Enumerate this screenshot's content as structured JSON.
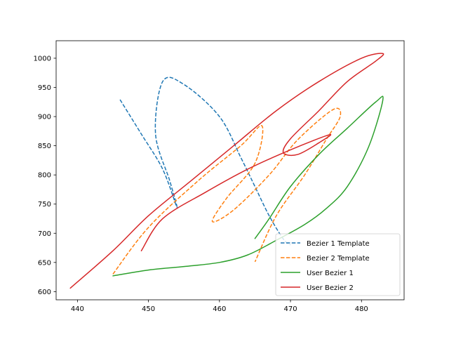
{
  "chart_data": {
    "type": "line",
    "title": "",
    "xlabel": "",
    "ylabel": "",
    "xlim": [
      437,
      486
    ],
    "ylim": [
      586,
      1030
    ],
    "x_ticks": [
      440,
      450,
      460,
      470,
      480
    ],
    "y_ticks": [
      600,
      650,
      700,
      750,
      800,
      850,
      900,
      950,
      1000
    ],
    "grid": false,
    "legend_position": "lower right",
    "series": [
      {
        "name": "Bezier 1 Template",
        "color": "#1f77b4",
        "dash": "dashed",
        "points": [
          [
            446,
            929
          ],
          [
            449,
            870
          ],
          [
            452,
            810
          ],
          [
            454,
            745
          ],
          [
            453,
            790
          ],
          [
            451,
            870
          ],
          [
            452,
            960
          ],
          [
            455,
            955
          ],
          [
            460,
            900
          ],
          [
            463,
            830
          ],
          [
            465,
            780
          ],
          [
            467,
            730
          ],
          [
            469,
            690
          ],
          [
            470,
            680
          ]
        ]
      },
      {
        "name": "Bezier 2 Template",
        "color": "#ff7f0e",
        "dash": "dashed",
        "points": [
          [
            445,
            630
          ],
          [
            450,
            710
          ],
          [
            457,
            790
          ],
          [
            463,
            850
          ],
          [
            466,
            884
          ],
          [
            465,
            820
          ],
          [
            461,
            760
          ],
          [
            459,
            720
          ],
          [
            462,
            740
          ],
          [
            467,
            800
          ],
          [
            471,
            860
          ],
          [
            476,
            912
          ],
          [
            477,
            900
          ],
          [
            475,
            860
          ],
          [
            472,
            800
          ],
          [
            468,
            730
          ],
          [
            465,
            651
          ]
        ]
      },
      {
        "name": "User Bezier 1",
        "color": "#2ca02c",
        "dash": "solid",
        "points": [
          [
            445,
            627
          ],
          [
            450,
            637
          ],
          [
            455,
            643
          ],
          [
            460,
            650
          ],
          [
            464,
            663
          ],
          [
            468,
            688
          ],
          [
            472,
            715
          ],
          [
            475,
            742
          ],
          [
            478,
            780
          ],
          [
            481,
            848
          ],
          [
            483,
            928
          ],
          [
            482,
            925
          ],
          [
            478,
            880
          ],
          [
            474,
            835
          ],
          [
            470,
            780
          ],
          [
            467,
            725
          ],
          [
            465,
            691
          ]
        ]
      },
      {
        "name": "User Bezier 2",
        "color": "#d62728",
        "dash": "solid",
        "points": [
          [
            439,
            606
          ],
          [
            445,
            670
          ],
          [
            450,
            730
          ],
          [
            456,
            790
          ],
          [
            462,
            850
          ],
          [
            468,
            910
          ],
          [
            474,
            960
          ],
          [
            480,
            1000
          ],
          [
            483,
            1008
          ],
          [
            482,
            995
          ],
          [
            478,
            960
          ],
          [
            474,
            910
          ],
          [
            470,
            862
          ],
          [
            469,
            838
          ],
          [
            471,
            835
          ],
          [
            474,
            855
          ],
          [
            475.5,
            869
          ],
          [
            470,
            843
          ],
          [
            464,
            810
          ],
          [
            458,
            770
          ],
          [
            452,
            725
          ],
          [
            449,
            670
          ]
        ]
      }
    ]
  }
}
